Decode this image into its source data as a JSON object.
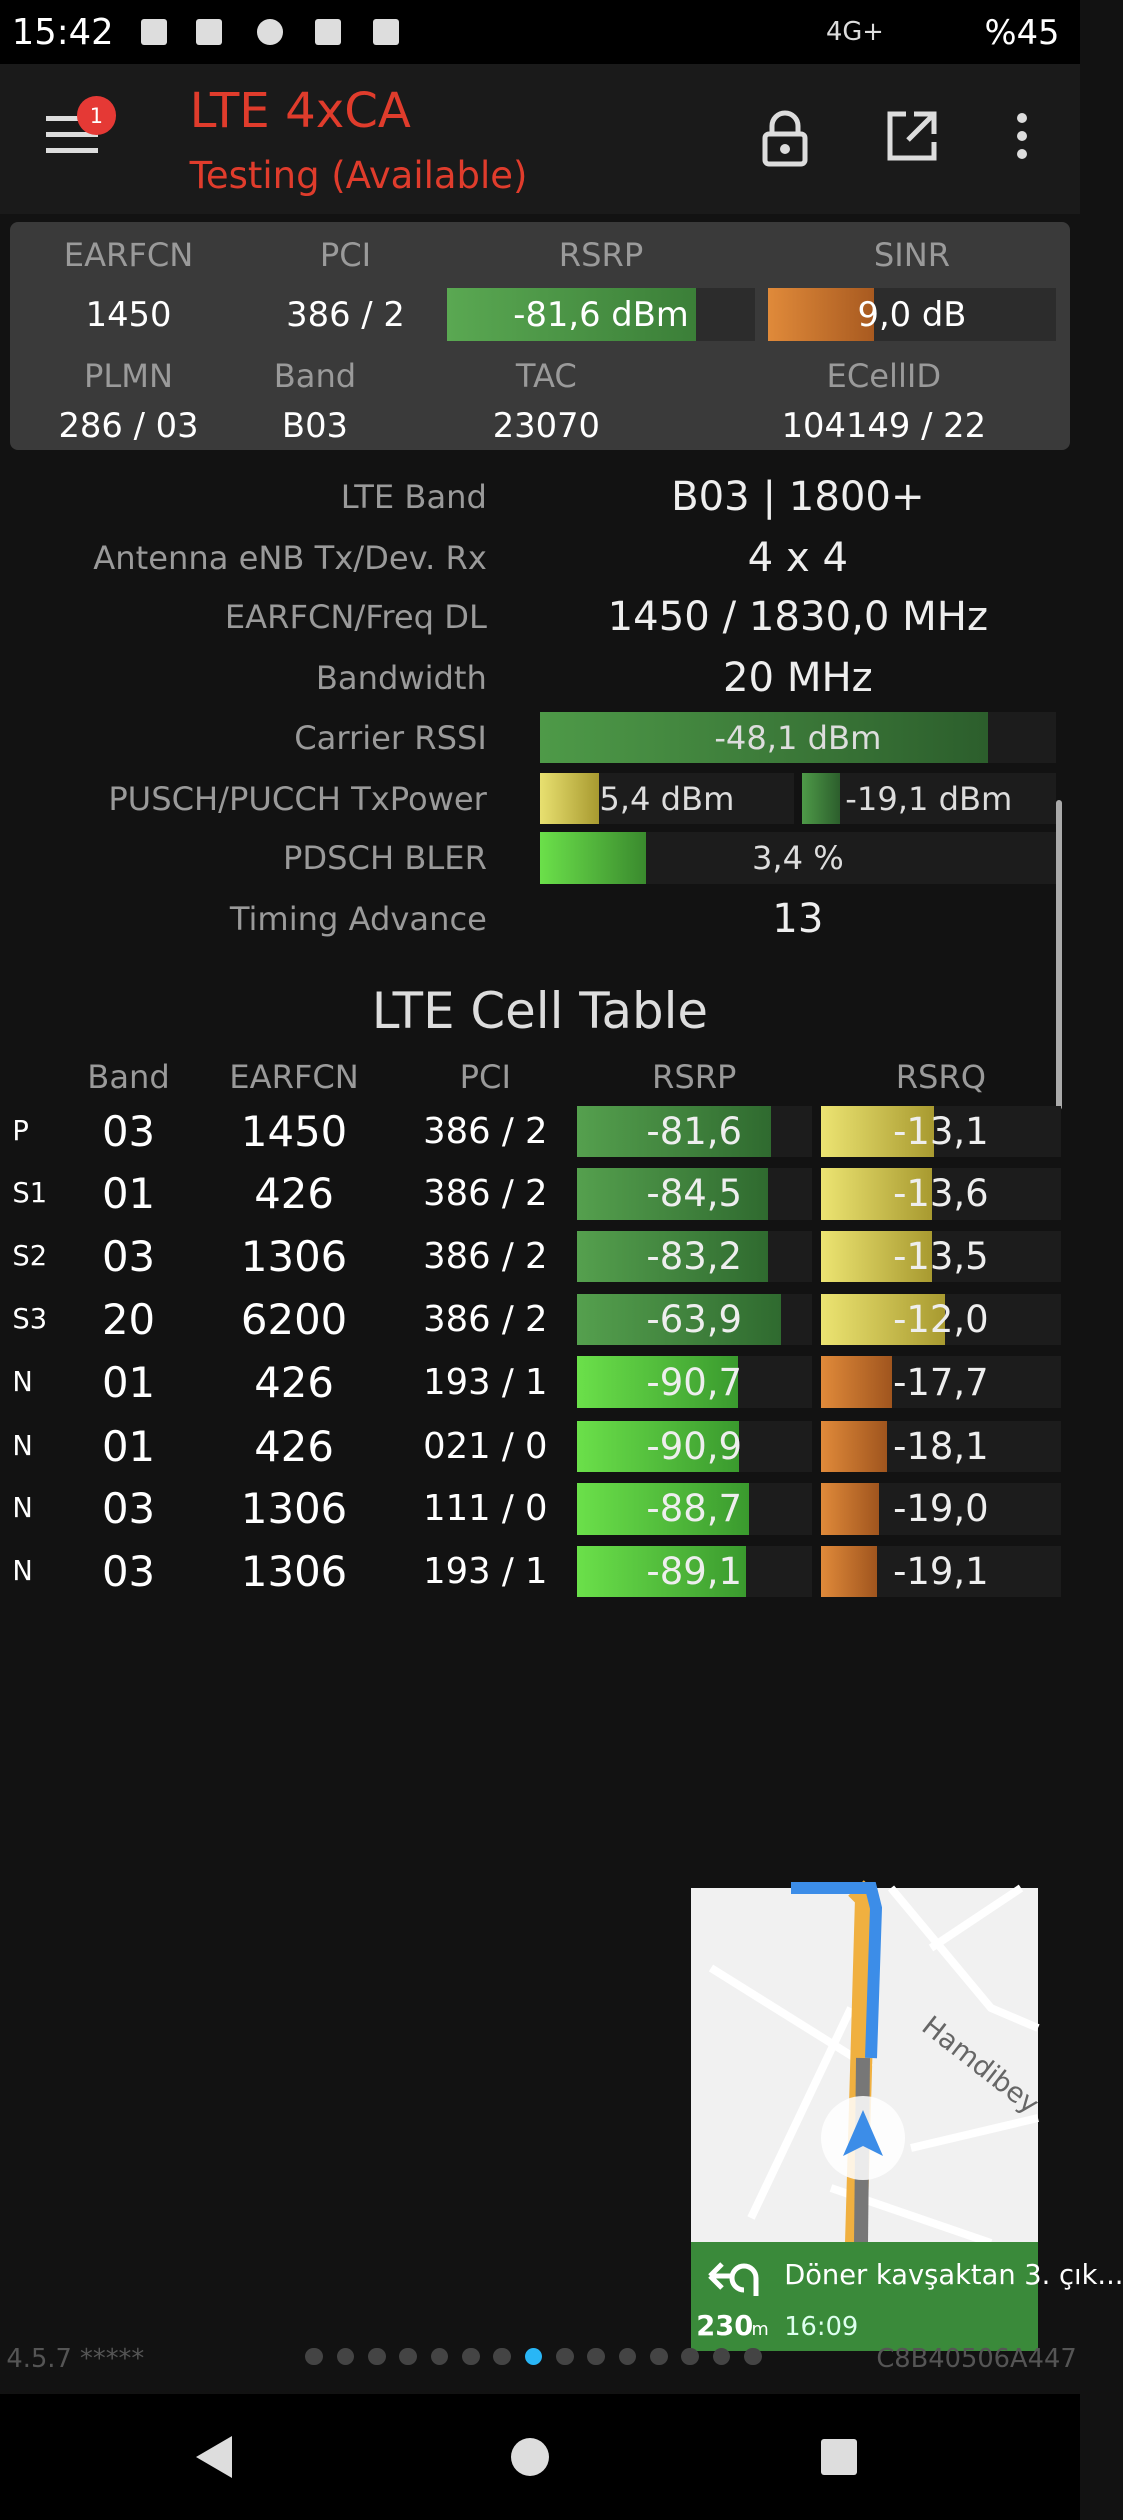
{
  "status_bar": {
    "time": "15:42",
    "network": "4G+",
    "battery": "%45"
  },
  "app_bar": {
    "title": "LTE 4xCA",
    "subtitle": "Testing (Available)",
    "badge": "1"
  },
  "summary": {
    "labels": [
      "EARFCN",
      "PCI",
      "RSRP",
      "SINR"
    ],
    "values": [
      "1450",
      "386 / 2",
      "-81,6 dBm",
      "9,0 dB"
    ],
    "labels2": [
      "PLMN",
      "Band",
      "TAC",
      "ECellID"
    ],
    "values2": [
      "286 / 03",
      "B03",
      "23070",
      "104149 / 22"
    ]
  },
  "details": [
    {
      "label": "LTE Band",
      "value": "B03 | 1800+"
    },
    {
      "label": "Antenna eNB Tx/Dev. Rx",
      "value": "4 x 4"
    },
    {
      "label": "EARFCN/Freq DL",
      "value": "1450 / 1830,0 MHz"
    },
    {
      "label": "Bandwidth",
      "value": "20 MHz"
    },
    {
      "label": "Carrier RSSI",
      "value": "-48,1 dBm"
    },
    {
      "label": "PUSCH/PUCCH TxPower",
      "value": "5,4 dBm",
      "value2": "-19,1 dBm"
    },
    {
      "label": "PDSCH BLER",
      "value": "3,4 %"
    },
    {
      "label": "Timing Advance",
      "value": "13"
    }
  ],
  "cell_table": {
    "title": "LTE Cell Table",
    "columns": [
      "Band",
      "EARFCN",
      "PCI",
      "RSRP",
      "RSRQ"
    ],
    "rows": [
      [
        "P",
        "03",
        "1450",
        "386 / 2",
        "-81,6",
        "-13,1"
      ],
      [
        "S1",
        "01",
        "426",
        "386 / 2",
        "-84,5",
        "-13,6"
      ],
      [
        "S2",
        "03",
        "1306",
        "386 / 2",
        "-83,2",
        "-13,5"
      ],
      [
        "S3",
        "20",
        "6200",
        "386 / 2",
        "-63,9",
        "-12,0"
      ],
      [
        "N",
        "01",
        "426",
        "193 / 1",
        "-90,7",
        "-17,7"
      ],
      [
        "N",
        "01",
        "426",
        "021 / 0",
        "-90,9",
        "-18,1"
      ],
      [
        "N",
        "03",
        "1306",
        "111 / 0",
        "-88,7",
        "-19,0"
      ],
      [
        "N",
        "03",
        "1306",
        "193 / 1",
        "-89,1",
        "-19,1"
      ]
    ]
  },
  "map": {
    "street": "Hamdibey",
    "instruction": "Döner kavşaktan 3. çık...",
    "distance": "230",
    "unit": "m",
    "time": "16:09"
  },
  "footer": {
    "version": "4.5.7 *****",
    "device_id": "C8B40506A447"
  }
}
